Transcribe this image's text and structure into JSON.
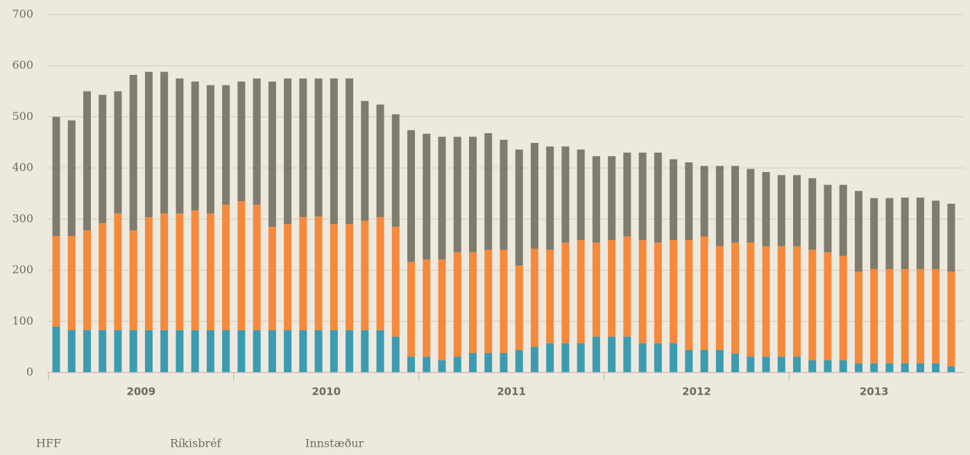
{
  "chart_data": {
    "type": "stacked_bar",
    "categories": [
      null,
      null,
      null,
      null,
      null,
      null,
      null,
      null,
      null,
      null,
      null,
      null,
      null,
      null,
      null,
      null,
      null,
      null,
      null,
      null,
      null,
      null,
      null,
      null,
      null,
      null,
      null,
      null,
      null,
      null,
      null,
      null,
      null,
      null,
      null,
      null,
      null,
      null,
      null,
      null,
      null,
      null,
      null,
      null,
      null,
      null,
      null,
      null,
      null,
      null,
      null,
      null,
      null,
      null,
      null,
      null,
      null,
      null,
      null
    ],
    "x_group_labels": [
      "2009",
      "2010",
      "2011",
      "2012",
      "2013"
    ],
    "series": [
      {
        "name": "HFF",
        "color": "#3d9bb0",
        "values": [
          90,
          83,
          83,
          83,
          83,
          83,
          83,
          83,
          83,
          83,
          83,
          83,
          83,
          83,
          83,
          83,
          83,
          83,
          83,
          83,
          83,
          83,
          70,
          31,
          31,
          24,
          31,
          38,
          38,
          38,
          44,
          50,
          57,
          57,
          57,
          70,
          70,
          70,
          57,
          57,
          57,
          44,
          44,
          44,
          37,
          31,
          31,
          31,
          31,
          24,
          24,
          24,
          18,
          18,
          18,
          18,
          18,
          18,
          12
        ]
      },
      {
        "name": "Ríkisbréf",
        "color": "#f58a3c",
        "values": [
          177,
          184,
          195,
          209,
          228,
          195,
          221,
          228,
          228,
          234,
          228,
          245,
          252,
          245,
          202,
          207,
          221,
          222,
          207,
          207,
          214,
          221,
          215,
          185,
          190,
          197,
          204,
          197,
          202,
          202,
          165,
          192,
          183,
          197,
          202,
          184,
          189,
          196,
          202,
          197,
          202,
          215,
          222,
          203,
          217,
          223,
          216,
          216,
          216,
          216,
          211,
          204,
          179,
          184,
          184,
          184,
          184,
          184,
          185
        ]
      },
      {
        "name": "Innstæður",
        "color": "#7f7b6d",
        "values": [
          233,
          226,
          272,
          251,
          239,
          304,
          284,
          277,
          264,
          252,
          251,
          234,
          234,
          247,
          284,
          285,
          271,
          270,
          285,
          285,
          234,
          220,
          220,
          258,
          246,
          240,
          226,
          226,
          228,
          215,
          227,
          207,
          202,
          188,
          177,
          169,
          164,
          164,
          171,
          176,
          158,
          152,
          138,
          157,
          150,
          144,
          145,
          139,
          139,
          140,
          132,
          139,
          158,
          139,
          139,
          140,
          140,
          134,
          133
        ]
      }
    ],
    "ylim": [
      0,
      700
    ],
    "yticks": [
      0,
      100,
      200,
      300,
      400,
      500,
      600,
      700
    ],
    "grid": true
  }
}
